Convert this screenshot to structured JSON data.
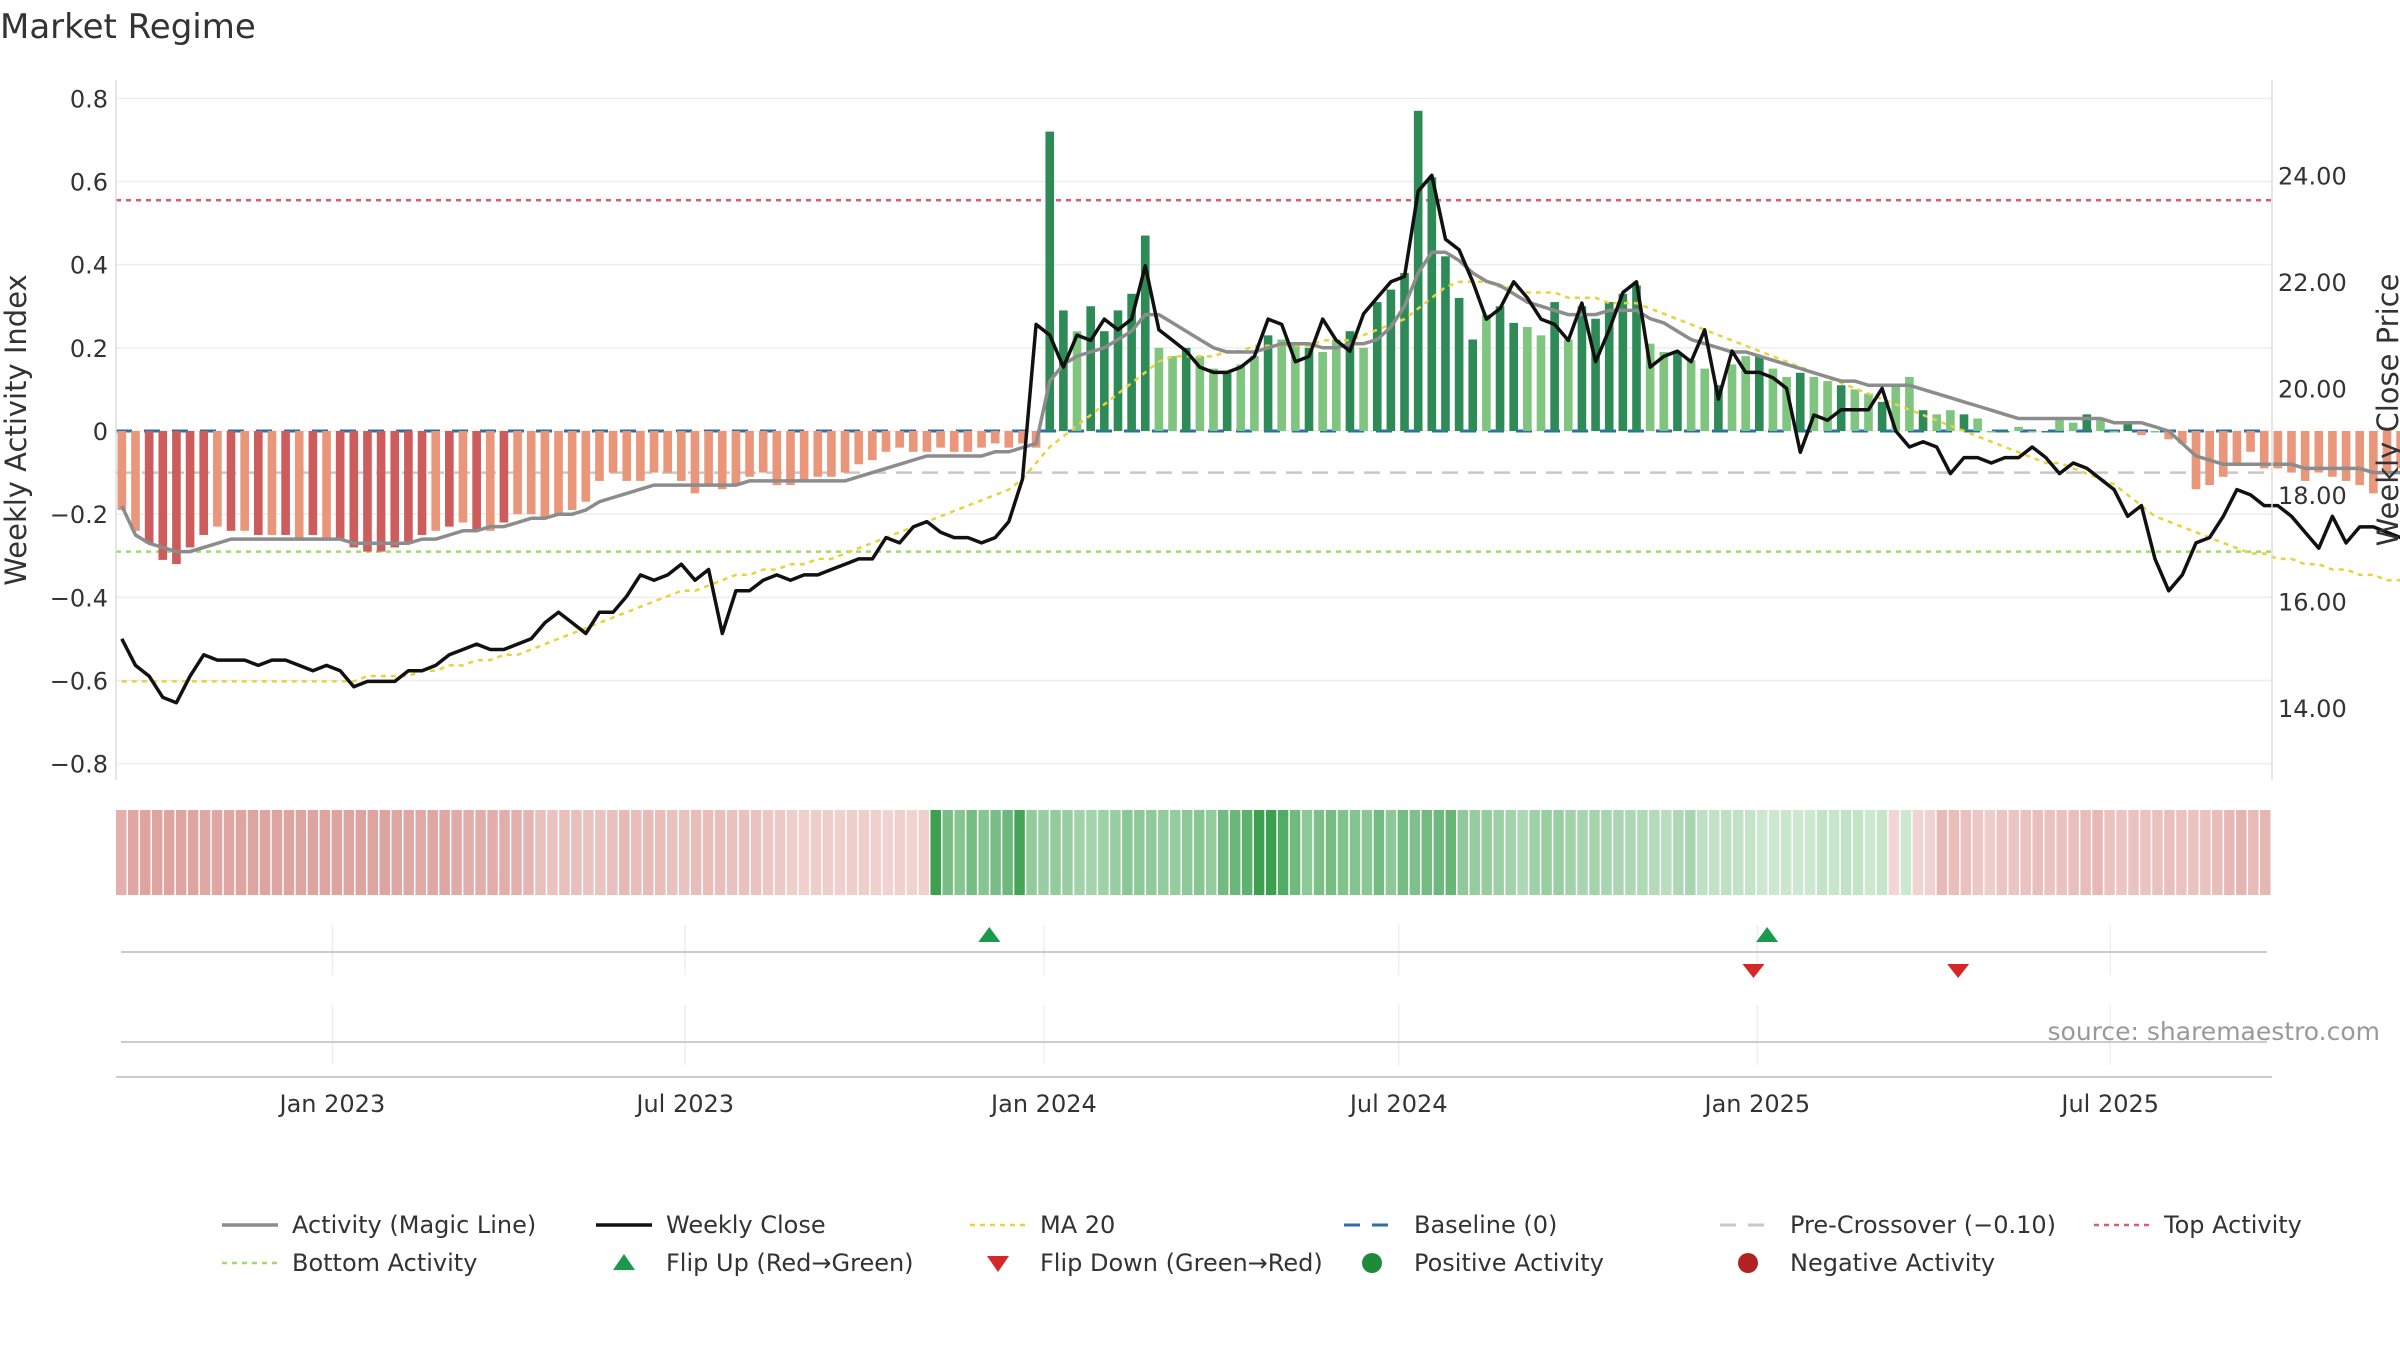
{
  "chart_data": {
    "type": "bar",
    "title": "Market Regime",
    "ylabel": "Weekly Activity Index",
    "ylabel_right": "Weekly Close Price",
    "source": "source: sharemaestro.com",
    "ylim": [
      -0.82,
      0.82
    ],
    "ylim_right": [
      12.8,
      25.6
    ],
    "yticks": [
      -0.8,
      -0.6,
      -0.4,
      -0.2,
      0,
      0.2,
      0.4,
      0.6,
      0.8
    ],
    "yticks_right": [
      14,
      16,
      18,
      20,
      22,
      24
    ],
    "ytick_labels": [
      "−0.8",
      "−0.6",
      "−0.4",
      "−0.2",
      "0",
      "0.2",
      "0.4",
      "0.6",
      "0.8"
    ],
    "ytick_labels_right": [
      "14.00",
      "16.00",
      "18.00",
      "20.00",
      "22.00",
      "24.00"
    ],
    "x_range": [
      "2022-09-12",
      "2025-09-22"
    ],
    "x_ticks": [
      {
        "date": "2023-01-01",
        "label": "Jan 2023"
      },
      {
        "date": "2023-07-01",
        "label": "Jul 2023"
      },
      {
        "date": "2024-01-01",
        "label": "Jan 2024"
      },
      {
        "date": "2024-07-01",
        "label": "Jul 2024"
      },
      {
        "date": "2025-01-01",
        "label": "Jan 2025"
      },
      {
        "date": "2025-07-01",
        "label": "Jul 2025"
      }
    ],
    "reference_lines": {
      "baseline": 0,
      "pre_crossover": -0.1,
      "top_activity": 0.555,
      "bottom_activity": -0.29
    },
    "start_date": "2022-09-15",
    "week_step_days": 7,
    "activity": [
      -0.19,
      -0.24,
      -0.27,
      -0.31,
      -0.32,
      -0.28,
      -0.25,
      -0.23,
      -0.24,
      -0.24,
      -0.25,
      -0.25,
      -0.25,
      -0.26,
      -0.25,
      -0.26,
      -0.26,
      -0.28,
      -0.29,
      -0.29,
      -0.28,
      -0.27,
      -0.25,
      -0.24,
      -0.23,
      -0.22,
      -0.24,
      -0.24,
      -0.22,
      -0.2,
      -0.2,
      -0.21,
      -0.2,
      -0.19,
      -0.17,
      -0.12,
      -0.1,
      -0.12,
      -0.12,
      -0.1,
      -0.1,
      -0.12,
      -0.15,
      -0.13,
      -0.14,
      -0.13,
      -0.11,
      -0.1,
      -0.13,
      -0.13,
      -0.12,
      -0.11,
      -0.11,
      -0.1,
      -0.08,
      -0.07,
      -0.05,
      -0.04,
      -0.05,
      -0.05,
      -0.04,
      -0.05,
      -0.05,
      -0.04,
      -0.03,
      -0.04,
      -0.03,
      -0.04,
      0.72,
      0.29,
      0.24,
      0.3,
      0.24,
      0.29,
      0.33,
      0.47,
      0.2,
      0.18,
      0.2,
      0.18,
      0.15,
      0.14,
      0.16,
      0.18,
      0.23,
      0.22,
      0.21,
      0.2,
      0.19,
      0.22,
      0.24,
      0.2,
      0.31,
      0.34,
      0.38,
      0.77,
      0.61,
      0.42,
      0.32,
      0.22,
      0.28,
      0.3,
      0.26,
      0.25,
      0.23,
      0.31,
      0.22,
      0.3,
      0.27,
      0.31,
      0.33,
      0.35,
      0.21,
      0.19,
      0.19,
      0.17,
      0.15,
      0.11,
      0.16,
      0.18,
      0.18,
      0.15,
      0.13,
      0.14,
      0.13,
      0.12,
      0.11,
      0.1,
      0.09,
      0.07,
      0.11,
      0.13,
      0.05,
      0.04,
      0.05,
      0.04,
      0.03,
      0.0,
      0.0,
      0.01,
      0.0,
      0.0,
      0.03,
      0.02,
      0.04,
      0.03,
      0.0,
      0.02,
      -0.01,
      0.0,
      -0.02,
      -0.03,
      -0.14,
      -0.13,
      -0.11,
      -0.08,
      -0.05,
      -0.09,
      -0.09,
      -0.1,
      -0.12,
      -0.1,
      -0.11,
      -0.12,
      -0.13,
      -0.15,
      -0.1,
      -0.09,
      -0.1,
      -0.1,
      -0.11,
      -0.12,
      -0.1,
      -0.1,
      -0.1,
      -0.13,
      -0.15,
      -0.17,
      -0.14,
      -0.16
    ],
    "magic_line": [
      -0.18,
      -0.25,
      -0.27,
      -0.28,
      -0.29,
      -0.29,
      -0.28,
      -0.27,
      -0.26,
      -0.26,
      -0.26,
      -0.26,
      -0.26,
      -0.26,
      -0.26,
      -0.26,
      -0.26,
      -0.27,
      -0.27,
      -0.27,
      -0.27,
      -0.27,
      -0.26,
      -0.26,
      -0.25,
      -0.24,
      -0.24,
      -0.23,
      -0.23,
      -0.22,
      -0.21,
      -0.21,
      -0.2,
      -0.2,
      -0.19,
      -0.17,
      -0.16,
      -0.15,
      -0.14,
      -0.13,
      -0.13,
      -0.13,
      -0.13,
      -0.13,
      -0.13,
      -0.13,
      -0.12,
      -0.12,
      -0.12,
      -0.12,
      -0.12,
      -0.12,
      -0.12,
      -0.12,
      -0.11,
      -0.1,
      -0.09,
      -0.08,
      -0.07,
      -0.06,
      -0.06,
      -0.06,
      -0.06,
      -0.06,
      -0.05,
      -0.05,
      -0.04,
      -0.03,
      0.12,
      0.16,
      0.18,
      0.19,
      0.2,
      0.22,
      0.24,
      0.28,
      0.28,
      0.26,
      0.24,
      0.22,
      0.2,
      0.19,
      0.19,
      0.19,
      0.2,
      0.21,
      0.21,
      0.21,
      0.2,
      0.2,
      0.21,
      0.21,
      0.22,
      0.25,
      0.3,
      0.38,
      0.43,
      0.43,
      0.41,
      0.38,
      0.36,
      0.35,
      0.33,
      0.31,
      0.3,
      0.29,
      0.28,
      0.28,
      0.28,
      0.29,
      0.29,
      0.29,
      0.27,
      0.26,
      0.24,
      0.22,
      0.21,
      0.2,
      0.19,
      0.19,
      0.18,
      0.17,
      0.16,
      0.15,
      0.14,
      0.13,
      0.12,
      0.12,
      0.11,
      0.11,
      0.11,
      0.11,
      0.1,
      0.09,
      0.08,
      0.07,
      0.06,
      0.05,
      0.04,
      0.03,
      0.03,
      0.03,
      0.03,
      0.03,
      0.03,
      0.03,
      0.02,
      0.02,
      0.02,
      0.01,
      0.0,
      -0.03,
      -0.06,
      -0.07,
      -0.08,
      -0.08,
      -0.08,
      -0.08,
      -0.08,
      -0.08,
      -0.09,
      -0.09,
      -0.09,
      -0.09,
      -0.09,
      -0.1,
      -0.1,
      -0.1,
      -0.11,
      -0.11,
      -0.11,
      -0.11,
      -0.11,
      -0.11,
      -0.12,
      -0.12,
      -0.12,
      -0.13,
      -0.14,
      -0.15,
      -0.15
    ],
    "weekly_close": [
      15.3,
      14.8,
      14.6,
      14.2,
      14.1,
      14.6,
      15.0,
      14.9,
      14.9,
      14.9,
      14.8,
      14.9,
      14.9,
      14.8,
      14.7,
      14.8,
      14.7,
      14.4,
      14.5,
      14.5,
      14.5,
      14.7,
      14.7,
      14.8,
      15.0,
      15.1,
      15.2,
      15.1,
      15.1,
      15.2,
      15.3,
      15.6,
      15.8,
      15.6,
      15.4,
      15.8,
      15.8,
      16.1,
      16.5,
      16.4,
      16.5,
      16.7,
      16.4,
      16.6,
      15.4,
      16.2,
      16.2,
      16.4,
      16.5,
      16.4,
      16.5,
      16.5,
      16.6,
      16.7,
      16.8,
      16.8,
      17.2,
      17.1,
      17.4,
      17.5,
      17.3,
      17.2,
      17.2,
      17.1,
      17.2,
      17.5,
      18.3,
      21.2,
      21.0,
      20.4,
      21.0,
      20.9,
      21.3,
      21.1,
      21.3,
      22.3,
      21.1,
      20.9,
      20.7,
      20.4,
      20.3,
      20.3,
      20.4,
      20.6,
      21.3,
      21.2,
      20.5,
      20.6,
      21.3,
      20.9,
      20.7,
      21.4,
      21.7,
      22.0,
      22.1,
      23.7,
      24.0,
      22.8,
      22.6,
      22.0,
      21.3,
      21.5,
      22.0,
      21.7,
      21.3,
      21.2,
      20.9,
      21.6,
      20.5,
      21.1,
      21.8,
      22.0,
      20.4,
      20.6,
      20.7,
      20.5,
      21.1,
      19.8,
      20.7,
      20.3,
      20.3,
      20.2,
      20.0,
      18.8,
      19.5,
      19.4,
      19.6,
      19.6,
      19.6,
      20.0,
      19.2,
      18.9,
      19.0,
      18.9,
      18.4,
      18.7,
      18.7,
      18.6,
      18.7,
      18.7,
      18.9,
      18.7,
      18.4,
      18.6,
      18.5,
      18.3,
      18.1,
      17.6,
      17.8,
      16.8,
      16.2,
      16.5,
      17.1,
      17.2,
      17.6,
      18.1,
      18.0,
      17.8,
      17.8,
      17.6,
      17.3,
      17.0,
      17.6,
      17.1,
      17.4,
      17.4,
      17.3,
      17.2,
      17.1,
      17.1,
      16.9,
      17.0,
      16.3,
      16.2,
      16.6,
      15.9
    ],
    "ma20": [
      14.5,
      14.5,
      14.5,
      14.5,
      14.5,
      14.5,
      14.5,
      14.5,
      14.5,
      14.5,
      14.5,
      14.5,
      14.5,
      14.5,
      14.5,
      14.5,
      14.5,
      14.5,
      14.6,
      14.6,
      14.6,
      14.6,
      14.7,
      14.7,
      14.8,
      14.8,
      14.9,
      14.9,
      15.0,
      15.0,
      15.1,
      15.2,
      15.3,
      15.4,
      15.5,
      15.6,
      15.7,
      15.8,
      15.9,
      16.0,
      16.1,
      16.2,
      16.2,
      16.3,
      16.4,
      16.5,
      16.5,
      16.6,
      16.6,
      16.7,
      16.7,
      16.8,
      16.8,
      16.9,
      17.0,
      17.1,
      17.2,
      17.3,
      17.4,
      17.5,
      17.6,
      17.7,
      17.8,
      17.9,
      18.0,
      18.1,
      18.3,
      18.6,
      18.9,
      19.1,
      19.3,
      19.5,
      19.7,
      19.9,
      20.1,
      20.3,
      20.5,
      20.6,
      20.6,
      20.6,
      20.6,
      20.7,
      20.7,
      20.8,
      20.8,
      20.8,
      20.8,
      20.8,
      20.9,
      20.9,
      20.9,
      21.0,
      21.1,
      21.2,
      21.3,
      21.5,
      21.7,
      21.9,
      22.0,
      22.0,
      22.0,
      21.9,
      21.9,
      21.8,
      21.8,
      21.8,
      21.7,
      21.7,
      21.7,
      21.6,
      21.6,
      21.6,
      21.5,
      21.4,
      21.3,
      21.2,
      21.1,
      21.0,
      20.9,
      20.8,
      20.7,
      20.6,
      20.5,
      20.4,
      20.3,
      20.2,
      20.1,
      20.0,
      19.9,
      19.8,
      19.7,
      19.6,
      19.5,
      19.4,
      19.3,
      19.2,
      19.1,
      19.0,
      18.9,
      18.8,
      18.7,
      18.6,
      18.6,
      18.5,
      18.4,
      18.3,
      18.2,
      18.0,
      17.8,
      17.6,
      17.5,
      17.4,
      17.3,
      17.2,
      17.1,
      17.0,
      16.9,
      16.9,
      16.8,
      16.8,
      16.7,
      16.7,
      16.6,
      16.6,
      16.5,
      16.5,
      16.4,
      16.4,
      16.3,
      16.3,
      16.2,
      16.1,
      16.0,
      15.9,
      15.8,
      15.7
    ],
    "flips_up": [
      "2023-12-04",
      "2025-01-06"
    ],
    "flips_down": [
      "2024-12-30",
      "2025-04-14"
    ],
    "legend": [
      {
        "key": "magic",
        "label": "Activity (Magic Line)",
        "color": "#8c8c8c",
        "style": "solid-line"
      },
      {
        "key": "close",
        "label": "Weekly Close",
        "color": "#111111",
        "style": "solid-line"
      },
      {
        "key": "ma20",
        "label": "MA 20",
        "color": "#e8d33a",
        "style": "dotted-line"
      },
      {
        "key": "baseline",
        "label": "Baseline (0)",
        "color": "#2b6fa6",
        "style": "dashed-line"
      },
      {
        "key": "pre",
        "label": "Pre-Crossover (−0.10)",
        "color": "#c8c8c8",
        "style": "dashed-line"
      },
      {
        "key": "top",
        "label": "Top Activity",
        "color": "#e05a6a",
        "style": "dotted-line"
      },
      {
        "key": "bottom",
        "label": "Bottom Activity",
        "color": "#a6d96a",
        "style": "dotted-line"
      },
      {
        "key": "flipup",
        "label": "Flip Up (Red→Green)",
        "color": "#1a9a4a",
        "style": "triangle-up"
      },
      {
        "key": "flipdown",
        "label": "Flip Down (Green→Red)",
        "color": "#d62728",
        "style": "triangle-down"
      },
      {
        "key": "pos",
        "label": "Positive Activity",
        "color": "#1f8a3a",
        "style": "dot"
      },
      {
        "key": "neg",
        "label": "Negative Activity",
        "color": "#b22222",
        "style": "dot"
      }
    ],
    "colors": {
      "pos_strong": "#2e8b57",
      "pos_light": "#7fc47f",
      "neg_strong": "#cd5c5c",
      "neg_light": "#e9967a"
    }
  }
}
